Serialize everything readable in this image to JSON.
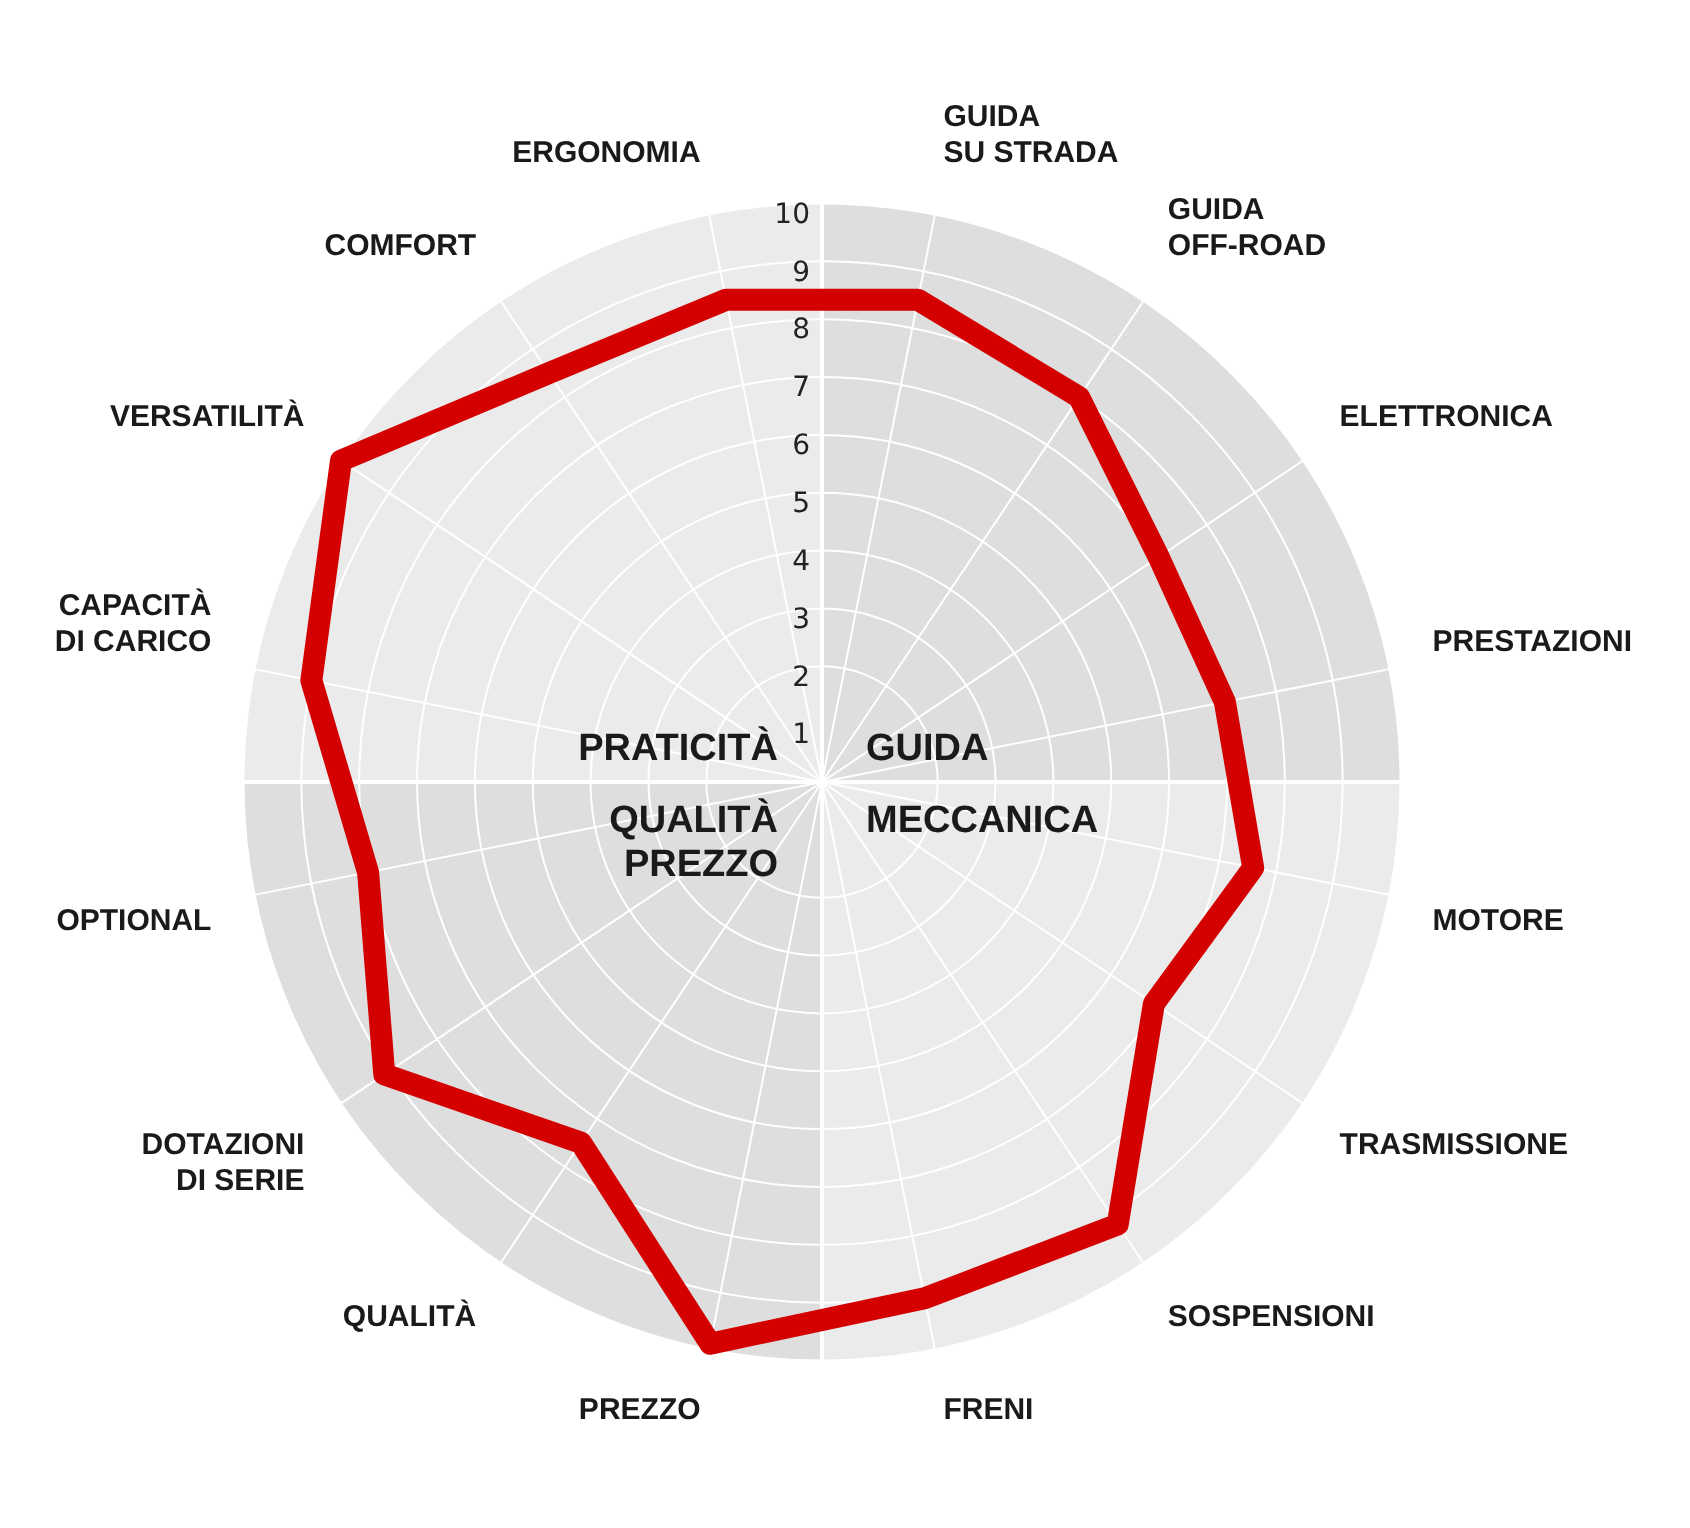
{
  "chart_data": {
    "type": "radar",
    "categories": [
      "GUIDA\nSU STRADA",
      "GUIDA\nOFF-ROAD",
      "ELETTRONICA",
      "PRESTAZIONI",
      "MOTORE",
      "TRASMISSIONE",
      "SOSPENSIONI",
      "FRENI",
      "PREZZO",
      "QUALITÀ",
      "DOTAZIONI\nDI SERIE",
      "OPTIONAL",
      "CAPACITÀ\nDI CARICO",
      "VERSATILITÀ",
      "COMFORT",
      "ERGONOMIA"
    ],
    "series": [
      {
        "color": "#d40000",
        "values": [
          8.5,
          8.0,
          7.0,
          7.1,
          7.6,
          6.9,
          9.2,
          9.1,
          9.9,
          7.5,
          9.1,
          8.0,
          9.0,
          10.0,
          8.5,
          8.5
        ]
      }
    ],
    "ylim": [
      0,
      10
    ],
    "yticks": [
      1,
      2,
      3,
      4,
      5,
      6,
      7,
      8,
      9,
      10
    ],
    "grid": true,
    "legend": false,
    "marker": "none",
    "line_style": "solid",
    "annotations": [
      "PRATICITÀ",
      "GUIDA",
      "QUALITÀ\nPREZZO",
      "MECCANICA"
    ]
  }
}
